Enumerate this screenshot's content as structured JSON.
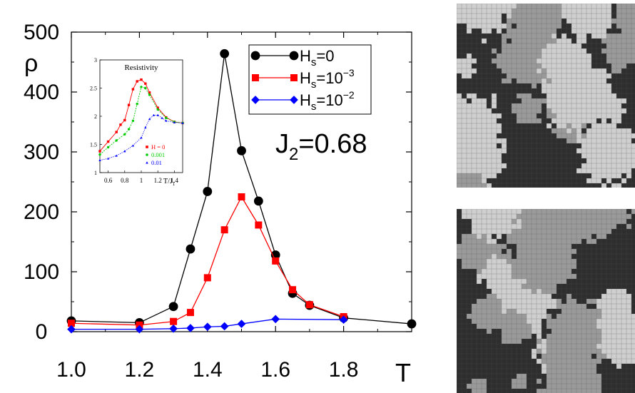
{
  "chart_data": [
    {
      "type": "line",
      "x": [
        1.0,
        1.2,
        1.3,
        1.35,
        1.4,
        1.45,
        1.5,
        1.55,
        1.6,
        1.65,
        1.7,
        1.8,
        2.0
      ],
      "xlim": [
        1.0,
        2.0
      ],
      "ylim": [
        0,
        500
      ],
      "xticks": [
        "1.0",
        "1.2",
        "1.4",
        "1.6",
        "1.8"
      ],
      "xtick_values": [
        1.0,
        1.2,
        1.4,
        1.6,
        1.8
      ],
      "yticks": [
        "0",
        "100",
        "200",
        "300",
        "400",
        "500"
      ],
      "ytick_values": [
        0,
        100,
        200,
        300,
        400,
        500
      ],
      "xlabel": "T",
      "ylabel": "ρ",
      "annotation": {
        "base": "J",
        "sub": "2",
        "rest": "=0.68"
      },
      "legend_position": "top-right",
      "series": [
        {
          "name": "H_s=0",
          "label": {
            "base": "H",
            "sub": "s",
            "rest": "=0"
          },
          "color": "#000000",
          "marker": "circle",
          "points": [
            [
              1.0,
              18
            ],
            [
              1.2,
              15
            ],
            [
              1.3,
              42
            ],
            [
              1.35,
              138
            ],
            [
              1.4,
              234
            ],
            [
              1.45,
              464
            ],
            [
              1.5,
              302
            ],
            [
              1.55,
              218
            ],
            [
              1.6,
              128
            ],
            [
              1.65,
              64
            ],
            [
              1.7,
              44
            ],
            [
              1.8,
              23
            ],
            [
              2.0,
              13
            ]
          ]
        },
        {
          "name": "H_s=10^-3",
          "label": {
            "base": "H",
            "sub": "s",
            "rest": "=10",
            "sup": "−3"
          },
          "color": "#ff0000",
          "marker": "square",
          "points": [
            [
              1.0,
              14
            ],
            [
              1.2,
              11
            ],
            [
              1.3,
              17
            ],
            [
              1.35,
              32
            ],
            [
              1.4,
              90
            ],
            [
              1.45,
              170
            ],
            [
              1.5,
              225
            ],
            [
              1.55,
              178
            ],
            [
              1.6,
              118
            ],
            [
              1.65,
              70
            ],
            [
              1.7,
              45
            ],
            [
              1.8,
              25
            ]
          ]
        },
        {
          "name": "H_s=10^-2",
          "label": {
            "base": "H",
            "sub": "s",
            "rest": "=10",
            "sup": "−2"
          },
          "color": "#0000ff",
          "marker": "diamond",
          "points": [
            [
              1.0,
              4
            ],
            [
              1.2,
              4
            ],
            [
              1.3,
              5
            ],
            [
              1.35,
              6
            ],
            [
              1.4,
              8
            ],
            [
              1.45,
              9
            ],
            [
              1.5,
              13
            ],
            [
              1.6,
              21
            ],
            [
              1.8,
              20
            ]
          ]
        }
      ]
    },
    {
      "type": "line",
      "title": "Resistivity",
      "xlabel": "T/J",
      "xlabel_sub": "1",
      "xlim": [
        0.5,
        1.5
      ],
      "ylim": [
        1.0,
        3.0
      ],
      "xticks": [
        "0.6",
        "0.8",
        "1",
        "1.2",
        "1.4"
      ],
      "xtick_values": [
        0.6,
        0.8,
        1.0,
        1.2,
        1.4
      ],
      "yticks": [
        "1",
        "1.5",
        "2",
        "2.5",
        "3"
      ],
      "ytick_values": [
        1.0,
        1.5,
        2.0,
        2.5,
        3.0
      ],
      "legend_position": "bottom-right",
      "series": [
        {
          "name": "H = 0",
          "color": "#ff0000",
          "marker": "square",
          "points": [
            [
              0.5,
              1.38
            ],
            [
              0.6,
              1.55
            ],
            [
              0.7,
              1.72
            ],
            [
              0.75,
              1.85
            ],
            [
              0.8,
              1.93
            ],
            [
              0.85,
              2.2
            ],
            [
              0.9,
              2.48
            ],
            [
              0.95,
              2.62
            ],
            [
              1.0,
              2.65
            ],
            [
              1.05,
              2.58
            ],
            [
              1.1,
              2.42
            ],
            [
              1.2,
              2.15
            ],
            [
              1.3,
              1.98
            ],
            [
              1.4,
              1.9
            ],
            [
              1.5,
              1.88
            ]
          ]
        },
        {
          "name": "0.001",
          "color": "#00cc00",
          "marker": "dot",
          "points": [
            [
              0.5,
              1.32
            ],
            [
              0.6,
              1.45
            ],
            [
              0.7,
              1.57
            ],
            [
              0.8,
              1.68
            ],
            [
              0.85,
              1.77
            ],
            [
              0.9,
              1.92
            ],
            [
              0.95,
              2.22
            ],
            [
              1.0,
              2.52
            ],
            [
              1.05,
              2.5
            ],
            [
              1.1,
              2.38
            ],
            [
              1.2,
              2.12
            ],
            [
              1.3,
              1.97
            ],
            [
              1.4,
              1.9
            ],
            [
              1.5,
              1.88
            ]
          ]
        },
        {
          "name": "0.01",
          "color": "#0000ff",
          "marker": "triangle",
          "points": [
            [
              0.5,
              1.22
            ],
            [
              0.6,
              1.25
            ],
            [
              0.7,
              1.3
            ],
            [
              0.8,
              1.38
            ],
            [
              0.9,
              1.48
            ],
            [
              1.0,
              1.62
            ],
            [
              1.05,
              1.8
            ],
            [
              1.1,
              1.95
            ],
            [
              1.15,
              2.02
            ],
            [
              1.2,
              2.02
            ],
            [
              1.25,
              1.97
            ],
            [
              1.3,
              1.92
            ],
            [
              1.4,
              1.89
            ],
            [
              1.5,
              1.88
            ]
          ]
        }
      ]
    }
  ]
}
